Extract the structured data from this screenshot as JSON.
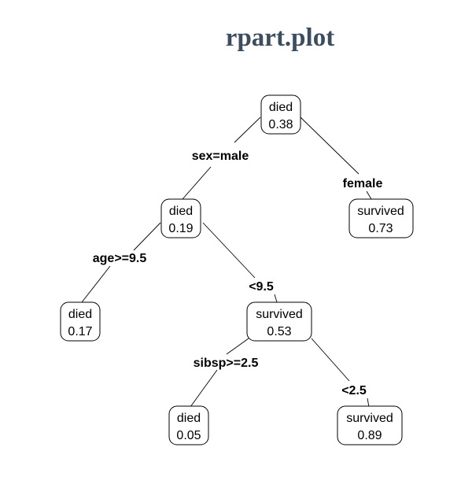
{
  "title": "rpart.plot",
  "tree": {
    "nodes": {
      "root": {
        "class": "died",
        "prob": "0.38"
      },
      "n2": {
        "class": "died",
        "prob": "0.19"
      },
      "n3": {
        "class": "survived",
        "prob": "0.73"
      },
      "n4": {
        "class": "died",
        "prob": "0.17"
      },
      "n5": {
        "class": "survived",
        "prob": "0.53"
      },
      "n10": {
        "class": "died",
        "prob": "0.05"
      },
      "n11": {
        "class": "survived",
        "prob": "0.89"
      }
    },
    "splits": {
      "root_left": "sex=male",
      "root_right": "female",
      "n2_left": "age>=9.5",
      "n2_right": "<9.5",
      "n5_left": "sibsp>=2.5",
      "n5_right": "<2.5"
    }
  }
}
